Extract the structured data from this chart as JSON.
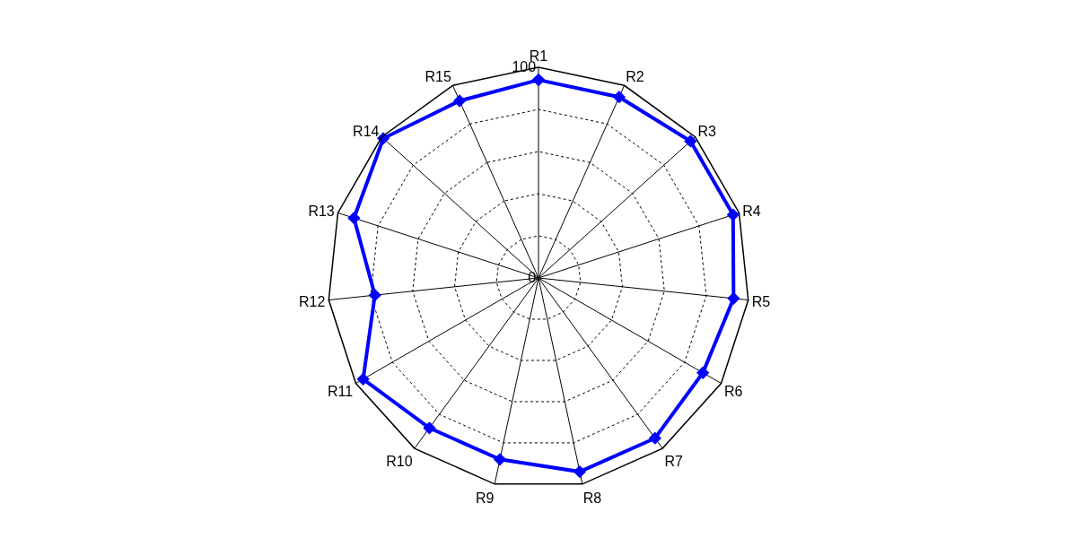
{
  "chart_data": {
    "type": "radar",
    "categories": [
      "R1",
      "R2",
      "R3",
      "R4",
      "R5",
      "R6",
      "R7",
      "R8",
      "R9",
      "R10",
      "R11",
      "R12",
      "R13",
      "R14",
      "R15"
    ],
    "series": [
      {
        "color": "#0000ff",
        "values": [
          94,
          94,
          97,
          97,
          93,
          90,
          94,
          94,
          88,
          88,
          96,
          78,
          92,
          99,
          92
        ]
      }
    ],
    "ylim": [
      0,
      100
    ],
    "yticks": [
      0,
      100
    ],
    "grid": true,
    "marker": "diamond",
    "line_style": "solid"
  }
}
